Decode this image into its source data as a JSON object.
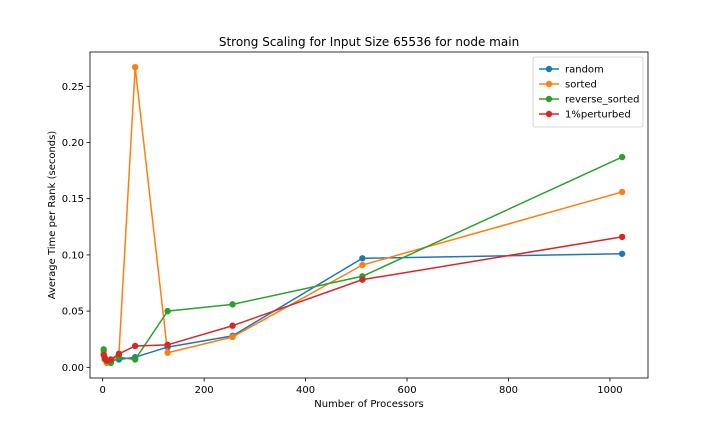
{
  "chart_data": {
    "type": "line",
    "title": "Strong Scaling for Input Size 65536 for node main",
    "xlabel": "Number of Processors",
    "ylabel": "Average Time per Rank (seconds)",
    "xlim": [
      -25,
      1075
    ],
    "ylim": [
      -0.0095,
      0.2805
    ],
    "xticks": [
      0,
      200,
      400,
      600,
      800,
      1000
    ],
    "yticks": [
      0.0,
      0.05,
      0.1,
      0.15,
      0.2,
      0.25
    ],
    "ytick_labels": [
      "0.00",
      "0.05",
      "0.10",
      "0.15",
      "0.20",
      "0.25"
    ],
    "grid": false,
    "legend_position": "top-right",
    "x": [
      2,
      4,
      8,
      16,
      32,
      64,
      128,
      256,
      512,
      1024
    ],
    "series": [
      {
        "name": "random",
        "color": "#1f77b4",
        "values": [
          0.012,
          0.008,
          0.005,
          0.006,
          0.007,
          0.009,
          0.018,
          0.028,
          0.097,
          0.101
        ]
      },
      {
        "name": "sorted",
        "color": "#ff7f0e",
        "values": [
          0.014,
          0.007,
          0.004,
          0.005,
          0.012,
          0.267,
          0.013,
          0.027,
          0.091,
          0.156
        ]
      },
      {
        "name": "reverse_sorted",
        "color": "#2ca02c",
        "values": [
          0.016,
          0.009,
          0.006,
          0.004,
          0.009,
          0.007,
          0.05,
          0.056,
          0.081,
          0.187
        ]
      },
      {
        "name": "1%perturbed",
        "color": "#d62728",
        "values": [
          0.011,
          0.008,
          0.006,
          0.007,
          0.012,
          0.019,
          0.02,
          0.037,
          0.078,
          0.116
        ]
      }
    ]
  }
}
